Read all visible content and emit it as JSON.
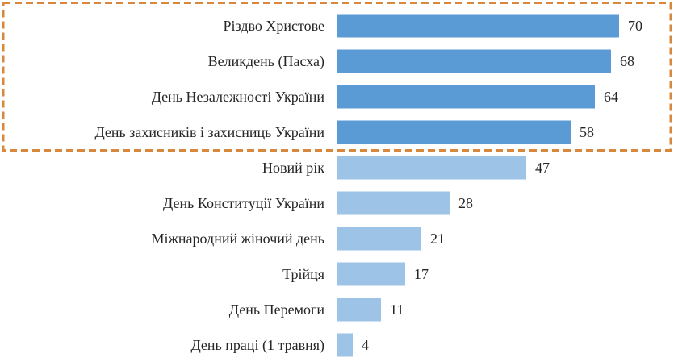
{
  "chart_data": {
    "type": "bar",
    "orientation": "horizontal",
    "categories": [
      "Різдво Христове",
      "Великдень (Пасха)",
      "День Незалежності України",
      "День захисників і захисниць України",
      "Новий рік",
      "День Конституції України",
      "Міжнародний жіночий день",
      "Трійця",
      "День Перемоги",
      "День праці (1 травня)"
    ],
    "values": [
      70,
      68,
      64,
      58,
      47,
      28,
      21,
      17,
      11,
      4
    ],
    "value_labels": [
      "70",
      "68",
      "64",
      "58",
      "47",
      "28",
      "21",
      "17",
      "11",
      "4"
    ],
    "highlighted_count": 4,
    "highlight_box": "dashed orange rectangle around the first four bars",
    "xlim": [
      0,
      70
    ],
    "grid": false,
    "legend": "none",
    "colors": {
      "highlight_bar": "#5B9BD5",
      "regular_bar": "#9DC3E6",
      "highlight_box": "#D7883C",
      "text": "#262626"
    }
  }
}
